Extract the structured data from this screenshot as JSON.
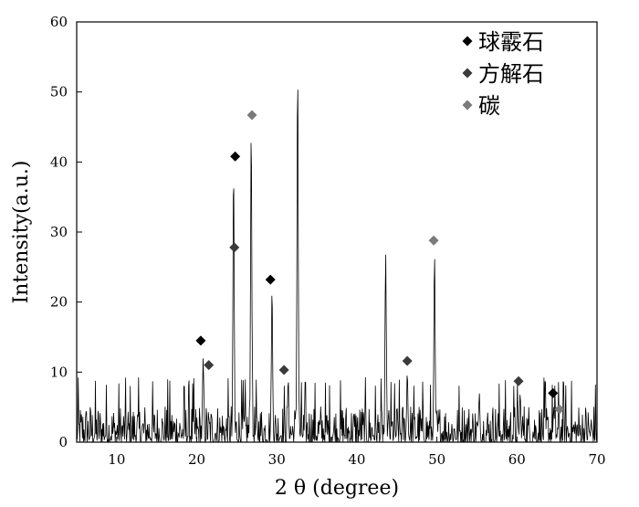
{
  "chart_data": {
    "type": "line",
    "title": "",
    "xlabel": "2 θ (degree)",
    "ylabel": "Intensity(a.u.)",
    "xlim": [
      5,
      70
    ],
    "ylim": [
      0,
      60
    ],
    "xticks": [
      10,
      20,
      30,
      40,
      50,
      60,
      70
    ],
    "yticks": [
      0,
      10,
      20,
      30,
      40,
      50,
      60
    ],
    "grid": false,
    "legend_position": "top-right",
    "line_color": "#000000",
    "baseline_noise_max": 6,
    "peaks": [
      {
        "x": 20.8,
        "y": 12
      },
      {
        "x": 24.6,
        "y": 39
      },
      {
        "x": 26.8,
        "y": 45
      },
      {
        "x": 29.4,
        "y": 22
      },
      {
        "x": 31.4,
        "y": 8
      },
      {
        "x": 32.6,
        "y": 53
      },
      {
        "x": 43.6,
        "y": 27
      },
      {
        "x": 46.3,
        "y": 10
      },
      {
        "x": 49.7,
        "y": 27
      },
      {
        "x": 55.3,
        "y": 7
      },
      {
        "x": 60.4,
        "y": 7
      },
      {
        "x": 64.6,
        "y": 5
      }
    ],
    "series": [
      {
        "name": "球霰石",
        "marker": "diamond",
        "color": "#000000",
        "points": [
          {
            "x": 20.5,
            "y": 14.5
          },
          {
            "x": 24.8,
            "y": 40.8
          },
          {
            "x": 29.2,
            "y": 23.2
          },
          {
            "x": 64.5,
            "y": 7.0
          }
        ]
      },
      {
        "name": "方解石",
        "marker": "diamond",
        "color": "#3a3a3a",
        "points": [
          {
            "x": 21.5,
            "y": 11.0
          },
          {
            "x": 24.7,
            "y": 27.8
          },
          {
            "x": 30.9,
            "y": 10.3
          },
          {
            "x": 46.3,
            "y": 11.6
          },
          {
            "x": 60.2,
            "y": 8.7
          }
        ]
      },
      {
        "name": "碳",
        "marker": "diamond",
        "color": "#7a7a7a",
        "points": [
          {
            "x": 26.9,
            "y": 46.7
          },
          {
            "x": 49.6,
            "y": 28.8
          },
          {
            "x": 65.3,
            "y": 4.7
          }
        ]
      }
    ]
  }
}
